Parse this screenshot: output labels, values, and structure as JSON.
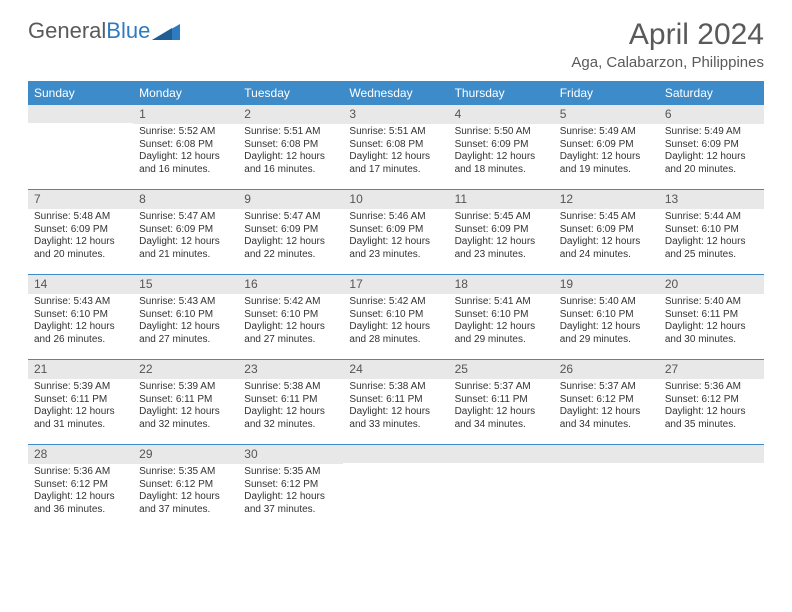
{
  "logo": {
    "text_gray": "General",
    "text_blue": "Blue"
  },
  "header": {
    "title": "April 2024",
    "location": "Aga, Calabarzon, Philippines"
  },
  "colors": {
    "header_bg": "#3d8bc9",
    "header_fg": "#ffffff",
    "daynum_bg": "#e8e8e8",
    "daynum_fg": "#555555",
    "week_divider": "#3d8bc9",
    "text": "#333333",
    "title": "#5a5a5a"
  },
  "dow": [
    "Sunday",
    "Monday",
    "Tuesday",
    "Wednesday",
    "Thursday",
    "Friday",
    "Saturday"
  ],
  "weeks": [
    [
      {
        "n": "",
        "sr": "",
        "ss": "",
        "dl": ""
      },
      {
        "n": "1",
        "sr": "Sunrise: 5:52 AM",
        "ss": "Sunset: 6:08 PM",
        "dl": "Daylight: 12 hours and 16 minutes."
      },
      {
        "n": "2",
        "sr": "Sunrise: 5:51 AM",
        "ss": "Sunset: 6:08 PM",
        "dl": "Daylight: 12 hours and 16 minutes."
      },
      {
        "n": "3",
        "sr": "Sunrise: 5:51 AM",
        "ss": "Sunset: 6:08 PM",
        "dl": "Daylight: 12 hours and 17 minutes."
      },
      {
        "n": "4",
        "sr": "Sunrise: 5:50 AM",
        "ss": "Sunset: 6:09 PM",
        "dl": "Daylight: 12 hours and 18 minutes."
      },
      {
        "n": "5",
        "sr": "Sunrise: 5:49 AM",
        "ss": "Sunset: 6:09 PM",
        "dl": "Daylight: 12 hours and 19 minutes."
      },
      {
        "n": "6",
        "sr": "Sunrise: 5:49 AM",
        "ss": "Sunset: 6:09 PM",
        "dl": "Daylight: 12 hours and 20 minutes."
      }
    ],
    [
      {
        "n": "7",
        "sr": "Sunrise: 5:48 AM",
        "ss": "Sunset: 6:09 PM",
        "dl": "Daylight: 12 hours and 20 minutes."
      },
      {
        "n": "8",
        "sr": "Sunrise: 5:47 AM",
        "ss": "Sunset: 6:09 PM",
        "dl": "Daylight: 12 hours and 21 minutes."
      },
      {
        "n": "9",
        "sr": "Sunrise: 5:47 AM",
        "ss": "Sunset: 6:09 PM",
        "dl": "Daylight: 12 hours and 22 minutes."
      },
      {
        "n": "10",
        "sr": "Sunrise: 5:46 AM",
        "ss": "Sunset: 6:09 PM",
        "dl": "Daylight: 12 hours and 23 minutes."
      },
      {
        "n": "11",
        "sr": "Sunrise: 5:45 AM",
        "ss": "Sunset: 6:09 PM",
        "dl": "Daylight: 12 hours and 23 minutes."
      },
      {
        "n": "12",
        "sr": "Sunrise: 5:45 AM",
        "ss": "Sunset: 6:09 PM",
        "dl": "Daylight: 12 hours and 24 minutes."
      },
      {
        "n": "13",
        "sr": "Sunrise: 5:44 AM",
        "ss": "Sunset: 6:10 PM",
        "dl": "Daylight: 12 hours and 25 minutes."
      }
    ],
    [
      {
        "n": "14",
        "sr": "Sunrise: 5:43 AM",
        "ss": "Sunset: 6:10 PM",
        "dl": "Daylight: 12 hours and 26 minutes."
      },
      {
        "n": "15",
        "sr": "Sunrise: 5:43 AM",
        "ss": "Sunset: 6:10 PM",
        "dl": "Daylight: 12 hours and 27 minutes."
      },
      {
        "n": "16",
        "sr": "Sunrise: 5:42 AM",
        "ss": "Sunset: 6:10 PM",
        "dl": "Daylight: 12 hours and 27 minutes."
      },
      {
        "n": "17",
        "sr": "Sunrise: 5:42 AM",
        "ss": "Sunset: 6:10 PM",
        "dl": "Daylight: 12 hours and 28 minutes."
      },
      {
        "n": "18",
        "sr": "Sunrise: 5:41 AM",
        "ss": "Sunset: 6:10 PM",
        "dl": "Daylight: 12 hours and 29 minutes."
      },
      {
        "n": "19",
        "sr": "Sunrise: 5:40 AM",
        "ss": "Sunset: 6:10 PM",
        "dl": "Daylight: 12 hours and 29 minutes."
      },
      {
        "n": "20",
        "sr": "Sunrise: 5:40 AM",
        "ss": "Sunset: 6:11 PM",
        "dl": "Daylight: 12 hours and 30 minutes."
      }
    ],
    [
      {
        "n": "21",
        "sr": "Sunrise: 5:39 AM",
        "ss": "Sunset: 6:11 PM",
        "dl": "Daylight: 12 hours and 31 minutes."
      },
      {
        "n": "22",
        "sr": "Sunrise: 5:39 AM",
        "ss": "Sunset: 6:11 PM",
        "dl": "Daylight: 12 hours and 32 minutes."
      },
      {
        "n": "23",
        "sr": "Sunrise: 5:38 AM",
        "ss": "Sunset: 6:11 PM",
        "dl": "Daylight: 12 hours and 32 minutes."
      },
      {
        "n": "24",
        "sr": "Sunrise: 5:38 AM",
        "ss": "Sunset: 6:11 PM",
        "dl": "Daylight: 12 hours and 33 minutes."
      },
      {
        "n": "25",
        "sr": "Sunrise: 5:37 AM",
        "ss": "Sunset: 6:11 PM",
        "dl": "Daylight: 12 hours and 34 minutes."
      },
      {
        "n": "26",
        "sr": "Sunrise: 5:37 AM",
        "ss": "Sunset: 6:12 PM",
        "dl": "Daylight: 12 hours and 34 minutes."
      },
      {
        "n": "27",
        "sr": "Sunrise: 5:36 AM",
        "ss": "Sunset: 6:12 PM",
        "dl": "Daylight: 12 hours and 35 minutes."
      }
    ],
    [
      {
        "n": "28",
        "sr": "Sunrise: 5:36 AM",
        "ss": "Sunset: 6:12 PM",
        "dl": "Daylight: 12 hours and 36 minutes."
      },
      {
        "n": "29",
        "sr": "Sunrise: 5:35 AM",
        "ss": "Sunset: 6:12 PM",
        "dl": "Daylight: 12 hours and 37 minutes."
      },
      {
        "n": "30",
        "sr": "Sunrise: 5:35 AM",
        "ss": "Sunset: 6:12 PM",
        "dl": "Daylight: 12 hours and 37 minutes."
      },
      {
        "n": "",
        "sr": "",
        "ss": "",
        "dl": ""
      },
      {
        "n": "",
        "sr": "",
        "ss": "",
        "dl": ""
      },
      {
        "n": "",
        "sr": "",
        "ss": "",
        "dl": ""
      },
      {
        "n": "",
        "sr": "",
        "ss": "",
        "dl": ""
      }
    ]
  ]
}
